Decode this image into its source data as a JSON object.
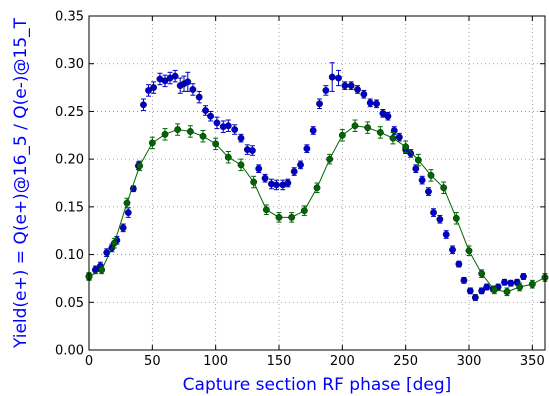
{
  "chart_data": {
    "type": "scatter",
    "title": "",
    "xlabel": "Capture section RF phase [deg]",
    "ylabel": "Yield(e+) = Q(e+)@16_5 / Q(e-)@15_T",
    "xlim": [
      0,
      360
    ],
    "ylim": [
      0.0,
      0.35
    ],
    "x_ticks": [
      0,
      50,
      100,
      150,
      200,
      250,
      300,
      350
    ],
    "y_ticks": [
      0.0,
      0.05,
      0.1,
      0.15,
      0.2,
      0.25,
      0.3,
      0.35
    ],
    "grid": true,
    "legend": "none",
    "series": [
      {
        "color": "#0000cc",
        "style": "markers",
        "points": [
          [
            0,
            0.077,
            0.003
          ],
          [
            5,
            0.084,
            0.004
          ],
          [
            9,
            0.088,
            0.004
          ],
          [
            14,
            0.102,
            0.004
          ],
          [
            18,
            0.107,
            0.004
          ],
          [
            22,
            0.115,
            0.004
          ],
          [
            27,
            0.128,
            0.004
          ],
          [
            31,
            0.144,
            0.005
          ],
          [
            35,
            0.169,
            0.003
          ],
          [
            39,
            0.193,
            0.004
          ],
          [
            43,
            0.257,
            0.006
          ],
          [
            47,
            0.272,
            0.006
          ],
          [
            51,
            0.275,
            0.006
          ],
          [
            56,
            0.284,
            0.006
          ],
          [
            60,
            0.282,
            0.006
          ],
          [
            64,
            0.285,
            0.006
          ],
          [
            68,
            0.287,
            0.006
          ],
          [
            72,
            0.277,
            0.008
          ],
          [
            75,
            0.279,
            0.008
          ],
          [
            78,
            0.281,
            0.01
          ],
          [
            82,
            0.273,
            0.006
          ],
          [
            87,
            0.265,
            0.006
          ],
          [
            92,
            0.251,
            0.005
          ],
          [
            96,
            0.245,
            0.005
          ],
          [
            101,
            0.238,
            0.006
          ],
          [
            106,
            0.234,
            0.006
          ],
          [
            110,
            0.235,
            0.006
          ],
          [
            115,
            0.231,
            0.005
          ],
          [
            120,
            0.222,
            0.004
          ],
          [
            125,
            0.21,
            0.005
          ],
          [
            129,
            0.209,
            0.005
          ],
          [
            134,
            0.19,
            0.004
          ],
          [
            139,
            0.18,
            0.004
          ],
          [
            144,
            0.174,
            0.005
          ],
          [
            148,
            0.173,
            0.005
          ],
          [
            153,
            0.173,
            0.005
          ],
          [
            157,
            0.175,
            0.004
          ],
          [
            162,
            0.187,
            0.004
          ],
          [
            167,
            0.194,
            0.004
          ],
          [
            172,
            0.211,
            0.004
          ],
          [
            177,
            0.23,
            0.004
          ],
          [
            182,
            0.258,
            0.005
          ],
          [
            187,
            0.272,
            0.005
          ],
          [
            192,
            0.286,
            0.015
          ],
          [
            197,
            0.285,
            0.008
          ],
          [
            202,
            0.277,
            0.004
          ],
          [
            207,
            0.277,
            0.004
          ],
          [
            212,
            0.273,
            0.004
          ],
          [
            217,
            0.268,
            0.004
          ],
          [
            222,
            0.259,
            0.004
          ],
          [
            227,
            0.258,
            0.004
          ],
          [
            232,
            0.248,
            0.004
          ],
          [
            236,
            0.245,
            0.004
          ],
          [
            241,
            0.23,
            0.004
          ],
          [
            245,
            0.223,
            0.004
          ],
          [
            250,
            0.21,
            0.004
          ],
          [
            254,
            0.206,
            0.004
          ],
          [
            258,
            0.19,
            0.004
          ],
          [
            263,
            0.178,
            0.004
          ],
          [
            268,
            0.166,
            0.004
          ],
          [
            272,
            0.144,
            0.004
          ],
          [
            277,
            0.137,
            0.004
          ],
          [
            282,
            0.121,
            0.004
          ],
          [
            287,
            0.105,
            0.004
          ],
          [
            292,
            0.09,
            0.003
          ],
          [
            296,
            0.073,
            0.003
          ],
          [
            301,
            0.062,
            0.003
          ],
          [
            305,
            0.055,
            0.003
          ],
          [
            310,
            0.062,
            0.003
          ],
          [
            314,
            0.066,
            0.003
          ],
          [
            319,
            0.064,
            0.003
          ],
          [
            323,
            0.066,
            0.003
          ],
          [
            328,
            0.071,
            0.003
          ],
          [
            333,
            0.07,
            0.003
          ],
          [
            338,
            0.071,
            0.003
          ],
          [
            343,
            0.077,
            0.003
          ]
        ]
      },
      {
        "color": "#006600",
        "style": "line-markers",
        "points": [
          [
            0,
            0.077,
            0.004
          ],
          [
            10,
            0.084,
            0.004
          ],
          [
            20,
            0.112,
            0.005
          ],
          [
            30,
            0.154,
            0.005
          ],
          [
            40,
            0.193,
            0.005
          ],
          [
            50,
            0.217,
            0.006
          ],
          [
            60,
            0.226,
            0.006
          ],
          [
            70,
            0.231,
            0.006
          ],
          [
            80,
            0.229,
            0.006
          ],
          [
            90,
            0.224,
            0.006
          ],
          [
            100,
            0.216,
            0.006
          ],
          [
            110,
            0.202,
            0.006
          ],
          [
            120,
            0.194,
            0.006
          ],
          [
            130,
            0.176,
            0.006
          ],
          [
            140,
            0.147,
            0.005
          ],
          [
            150,
            0.139,
            0.005
          ],
          [
            160,
            0.139,
            0.005
          ],
          [
            170,
            0.146,
            0.005
          ],
          [
            180,
            0.17,
            0.005
          ],
          [
            190,
            0.2,
            0.005
          ],
          [
            200,
            0.225,
            0.006
          ],
          [
            210,
            0.235,
            0.006
          ],
          [
            220,
            0.233,
            0.006
          ],
          [
            230,
            0.228,
            0.006
          ],
          [
            240,
            0.222,
            0.006
          ],
          [
            250,
            0.213,
            0.006
          ],
          [
            260,
            0.199,
            0.006
          ],
          [
            270,
            0.183,
            0.006
          ],
          [
            280,
            0.17,
            0.006
          ],
          [
            290,
            0.138,
            0.006
          ],
          [
            300,
            0.104,
            0.005
          ],
          [
            310,
            0.08,
            0.004
          ],
          [
            320,
            0.063,
            0.004
          ],
          [
            330,
            0.061,
            0.004
          ],
          [
            340,
            0.066,
            0.004
          ],
          [
            350,
            0.069,
            0.004
          ],
          [
            360,
            0.076,
            0.004
          ]
        ]
      }
    ]
  }
}
